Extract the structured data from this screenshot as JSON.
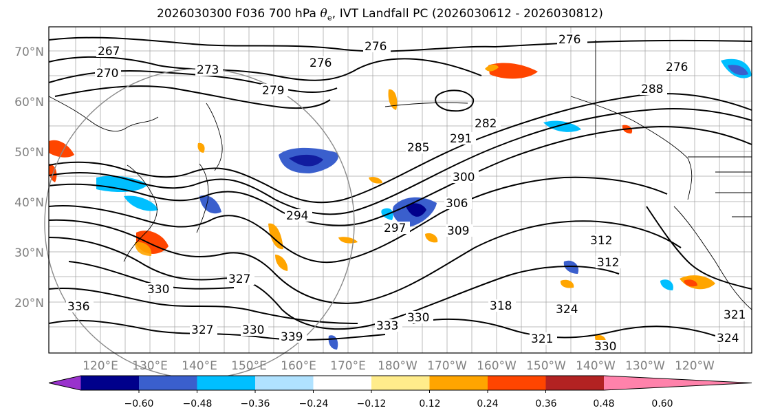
{
  "title": {
    "prefix": "2026030300 F036 700 hPa ",
    "theta": "θ",
    "theta_sub": "e",
    "suffix": ", IVT Landfall PC (2026030612 - 2026030812)"
  },
  "map": {
    "lat_labels": [
      "70°N",
      "60°N",
      "50°N",
      "40°N",
      "30°N",
      "20°N"
    ],
    "lon_labels": [
      "120°E",
      "130°E",
      "140°E",
      "150°E",
      "160°E",
      "170°E",
      "180°W",
      "170°W",
      "160°W",
      "150°W",
      "140°W",
      "130°W",
      "120°W"
    ],
    "contour_labels": [
      "267",
      "270",
      "273",
      "276",
      "276",
      "276",
      "279",
      "282",
      "285",
      "291",
      "294",
      "297",
      "300",
      "306",
      "309",
      "312",
      "312",
      "318",
      "321",
      "324",
      "327",
      "327",
      "330",
      "330",
      "330",
      "330",
      "333",
      "336",
      "339",
      "321",
      "324",
      "276",
      "288"
    ]
  },
  "colorbar": {
    "ticks": [
      "−0.60",
      "−0.48",
      "−0.36",
      "−0.24",
      "−0.12",
      "0.12",
      "0.24",
      "0.36",
      "0.48",
      "0.60"
    ],
    "colors": [
      "#9932cc",
      "#00008b",
      "#3a5fcd",
      "#00bfff",
      "#b0e2ff",
      "#ffffff",
      "#ffec8b",
      "#ffa500",
      "#ff4500",
      "#b22222",
      "#ff82ab"
    ]
  }
}
